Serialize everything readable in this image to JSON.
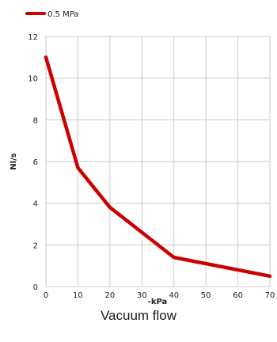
{
  "caption": "Vacuum flow",
  "chart_data": {
    "type": "line",
    "title": "",
    "xlabel": "-kPa",
    "ylabel": "Nl/s",
    "x": [
      0,
      10,
      20,
      30,
      40,
      50,
      60,
      70
    ],
    "xlim": [
      0,
      70
    ],
    "ylim": [
      0,
      12
    ],
    "x_ticks": [
      "0",
      "10",
      "20",
      "30",
      "40",
      "50",
      "60",
      "70"
    ],
    "y_ticks": [
      "0",
      "2",
      "4",
      "6",
      "8",
      "10",
      "12"
    ],
    "grid": true,
    "legend": "top-left",
    "series": [
      {
        "name": "0.5 MPa",
        "color": "#cc0000",
        "x": [
          0,
          10,
          20,
          30,
          40,
          70
        ],
        "y": [
          11.0,
          5.7,
          3.8,
          2.6,
          1.4,
          0.5
        ]
      }
    ]
  }
}
